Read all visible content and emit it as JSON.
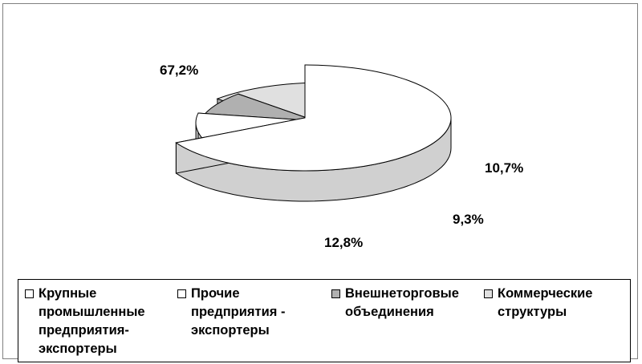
{
  "chart_data": {
    "type": "pie",
    "title": "",
    "slices": [
      {
        "label": "Крупные\nпромышленные\nпредприятия-\nэкспортеры",
        "value": 67.2,
        "value_label": "67,2%",
        "color": "#ffffff",
        "side_color": "#d0d0d0"
      },
      {
        "label": "Прочие\nпредприятия -\nэкспортеры",
        "value": 10.7,
        "value_label": "10,7%",
        "color": "#ffffff",
        "side_color": "#d0d0d0"
      },
      {
        "label": "Внешнеторговые\nобъединения",
        "value": 9.3,
        "value_label": "9,3%",
        "color": "#b0b0b0",
        "side_color": "#808080"
      },
      {
        "label": "Коммерческие\nструктуры",
        "value": 12.8,
        "value_label": "12,8%",
        "color": "#e0e0e0",
        "side_color": "#b0b0b0"
      }
    ],
    "legend_position": "bottom"
  }
}
